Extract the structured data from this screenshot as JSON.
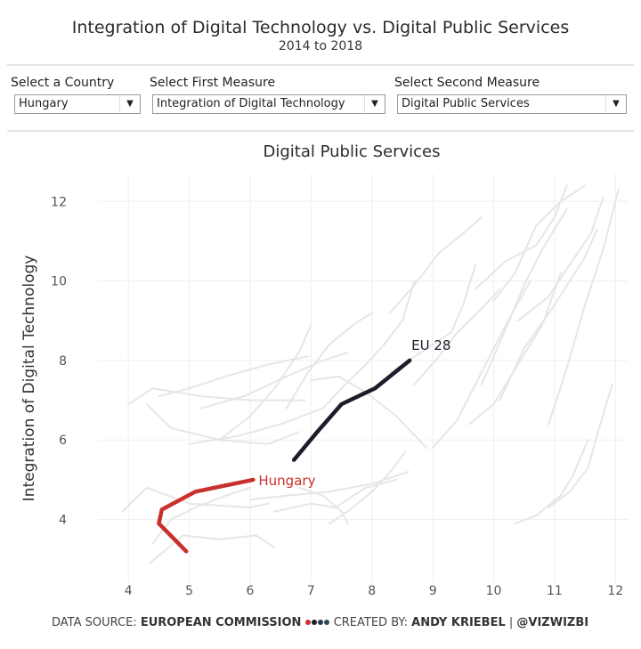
{
  "header": {
    "title": "Integration of Digital Technology vs. Digital Public Services",
    "subtitle": "2014 to 2018"
  },
  "filters": [
    {
      "label": "Select a Country",
      "value": "Hungary"
    },
    {
      "label": "Select First Measure",
      "value": "Integration of Digital Technology"
    },
    {
      "label": "Select Second Measure",
      "value": "Digital Public Services"
    }
  ],
  "chart_data": {
    "type": "line",
    "title": "Digital Public Services",
    "xlabel": "",
    "ylabel": "Integration of Digital Technology",
    "xlim": [
      3.5,
      12.2
    ],
    "ylim": [
      2.4,
      12.7
    ],
    "x_ticks": [
      4,
      5,
      6,
      7,
      8,
      9,
      10,
      11,
      12
    ],
    "y_ticks": [
      4,
      6,
      8,
      10,
      12
    ],
    "grid": true,
    "highlight_color": "#c9302c",
    "reference_color": "#1c1c2b",
    "background_color": "#e6e6e6",
    "series": [
      {
        "name": "Hungary",
        "role": "highlight",
        "x": [
          4.95,
          4.5,
          4.55,
          5.1,
          6.05
        ],
        "y": [
          3.2,
          3.9,
          4.25,
          4.7,
          5.0
        ]
      },
      {
        "name": "EU 28",
        "role": "reference",
        "x": [
          6.72,
          7.1,
          7.5,
          8.05,
          8.62
        ],
        "y": [
          5.5,
          6.2,
          6.9,
          7.3,
          8.0
        ]
      },
      {
        "name": "",
        "role": "background",
        "x": [
          3.9,
          4.3,
          5.0,
          6.0,
          6.3
        ],
        "y": [
          4.2,
          4.8,
          4.4,
          4.3,
          4.4
        ]
      },
      {
        "name": "",
        "role": "background",
        "x": [
          4.35,
          4.9,
          5.5,
          6.1,
          6.4
        ],
        "y": [
          2.9,
          3.6,
          3.5,
          3.6,
          3.3
        ]
      },
      {
        "name": "",
        "role": "background",
        "x": [
          4.4,
          4.7,
          5.1,
          5.6,
          6.0
        ],
        "y": [
          3.4,
          4.0,
          4.3,
          4.6,
          4.8
        ]
      },
      {
        "name": "",
        "role": "background",
        "x": [
          4.3,
          4.7,
          5.5,
          6.3,
          6.8
        ],
        "y": [
          6.9,
          6.3,
          6.0,
          5.9,
          6.2
        ]
      },
      {
        "name": "",
        "role": "background",
        "x": [
          4.0,
          4.4,
          5.2,
          6.0,
          6.9
        ],
        "y": [
          6.9,
          7.3,
          7.1,
          7.0,
          7.0
        ]
      },
      {
        "name": "",
        "role": "background",
        "x": [
          4.5,
          5.0,
          5.6,
          6.3,
          6.95
        ],
        "y": [
          7.1,
          7.3,
          7.6,
          7.9,
          8.1
        ]
      },
      {
        "name": "",
        "role": "background",
        "x": [
          5.0,
          5.8,
          6.5,
          7.2,
          7.5
        ],
        "y": [
          5.9,
          6.1,
          6.4,
          6.8,
          7.3
        ]
      },
      {
        "name": "",
        "role": "background",
        "x": [
          5.2,
          5.9,
          6.6,
          7.2,
          7.6
        ],
        "y": [
          6.8,
          7.1,
          7.6,
          8.0,
          8.2
        ]
      },
      {
        "name": "",
        "role": "background",
        "x": [
          5.5,
          6.0,
          6.4,
          6.8,
          7.0
        ],
        "y": [
          6.0,
          6.6,
          7.3,
          8.2,
          8.9
        ]
      },
      {
        "name": "",
        "role": "background",
        "x": [
          6.6,
          6.95,
          7.3,
          7.7,
          8.0
        ],
        "y": [
          6.8,
          7.7,
          8.4,
          8.9,
          9.2
        ]
      },
      {
        "name": "",
        "role": "background",
        "x": [
          7.0,
          7.45,
          7.9,
          8.4,
          8.9
        ],
        "y": [
          7.5,
          7.6,
          7.2,
          6.6,
          5.8
        ]
      },
      {
        "name": "",
        "role": "background",
        "x": [
          6.0,
          6.6,
          7.3,
          8.0,
          8.6
        ],
        "y": [
          4.5,
          4.6,
          4.7,
          4.9,
          5.2
        ]
      },
      {
        "name": "",
        "role": "background",
        "x": [
          6.8,
          7.2,
          7.5,
          7.6
        ],
        "y": [
          4.8,
          4.6,
          4.2,
          3.9
        ]
      },
      {
        "name": "",
        "role": "background",
        "x": [
          7.3,
          7.6,
          8.0,
          8.3,
          8.55
        ],
        "y": [
          3.9,
          4.2,
          4.7,
          5.2,
          5.7
        ]
      },
      {
        "name": "",
        "role": "background",
        "x": [
          7.5,
          7.9,
          8.2,
          8.5,
          8.7
        ],
        "y": [
          7.3,
          7.9,
          8.4,
          9.0,
          10.0
        ]
      },
      {
        "name": "",
        "role": "background",
        "x": [
          8.3,
          8.7,
          9.1,
          9.5,
          9.8
        ],
        "y": [
          9.2,
          9.9,
          10.7,
          11.2,
          11.6
        ]
      },
      {
        "name": "",
        "role": "background",
        "x": [
          8.7,
          9.1,
          9.4,
          9.8,
          10.1
        ],
        "y": [
          7.4,
          8.1,
          8.7,
          9.3,
          9.8
        ]
      },
      {
        "name": "",
        "role": "background",
        "x": [
          9.0,
          9.4,
          9.8,
          10.2,
          10.6
        ],
        "y": [
          5.8,
          6.5,
          7.7,
          8.9,
          10.0
        ]
      },
      {
        "name": "",
        "role": "background",
        "x": [
          9.6,
          10.0,
          10.4,
          10.8,
          11.1
        ],
        "y": [
          6.4,
          6.9,
          7.9,
          8.9,
          10.2
        ]
      },
      {
        "name": "",
        "role": "background",
        "x": [
          9.8,
          10.2,
          10.5,
          10.8,
          11.2
        ],
        "y": [
          7.4,
          8.8,
          9.9,
          10.8,
          11.8
        ]
      },
      {
        "name": "",
        "role": "background",
        "x": [
          10.0,
          10.35,
          10.7,
          11.1,
          11.5
        ],
        "y": [
          9.5,
          10.2,
          11.4,
          12.0,
          12.4
        ]
      },
      {
        "name": "",
        "role": "background",
        "x": [
          10.1,
          10.5,
          11.0,
          11.5,
          11.7
        ],
        "y": [
          7.0,
          8.3,
          9.4,
          10.6,
          11.3
        ]
      },
      {
        "name": "",
        "role": "background",
        "x": [
          10.4,
          10.9,
          11.2,
          11.6,
          11.8
        ],
        "y": [
          9.0,
          9.6,
          10.3,
          11.2,
          12.1
        ]
      },
      {
        "name": "",
        "role": "background",
        "x": [
          10.9,
          11.2,
          11.5,
          11.8,
          12.05
        ],
        "y": [
          6.4,
          7.8,
          9.4,
          10.8,
          12.3
        ]
      },
      {
        "name": "",
        "role": "background",
        "x": [
          10.35,
          10.7,
          11.1,
          11.3,
          11.55
        ],
        "y": [
          3.9,
          4.1,
          4.6,
          5.1,
          6.0
        ]
      },
      {
        "name": "",
        "role": "background",
        "x": [
          10.9,
          11.25,
          11.55,
          11.75,
          11.95
        ],
        "y": [
          4.3,
          4.7,
          5.3,
          6.4,
          7.4
        ]
      },
      {
        "name": "",
        "role": "background",
        "x": [
          9.7,
          10.2,
          10.7,
          11.0,
          11.2
        ],
        "y": [
          9.8,
          10.5,
          10.9,
          11.6,
          12.4
        ]
      },
      {
        "name": "",
        "role": "background",
        "x": [
          8.3,
          8.8,
          9.3,
          9.5,
          9.7
        ],
        "y": [
          7.7,
          8.2,
          8.7,
          9.4,
          10.4
        ]
      },
      {
        "name": "",
        "role": "background",
        "x": [
          6.4,
          7.0,
          7.4,
          7.9,
          8.4
        ],
        "y": [
          4.2,
          4.4,
          4.3,
          4.8,
          5.0
        ]
      }
    ]
  },
  "labels": {
    "hungary": "Hungary",
    "eu": "EU 28"
  },
  "footer": {
    "source_prefix": "DATA SOURCE: ",
    "source": "EUROPEAN COMMISSION",
    "created_prefix": "CREATED BY: ",
    "author": "ANDY KRIEBEL",
    "separator": " | ",
    "handle": "@VIZWIZBI",
    "dot_colors": [
      "#c9302c",
      "#1c1c2b",
      "#2a3a4a",
      "#2f4f4f"
    ]
  }
}
